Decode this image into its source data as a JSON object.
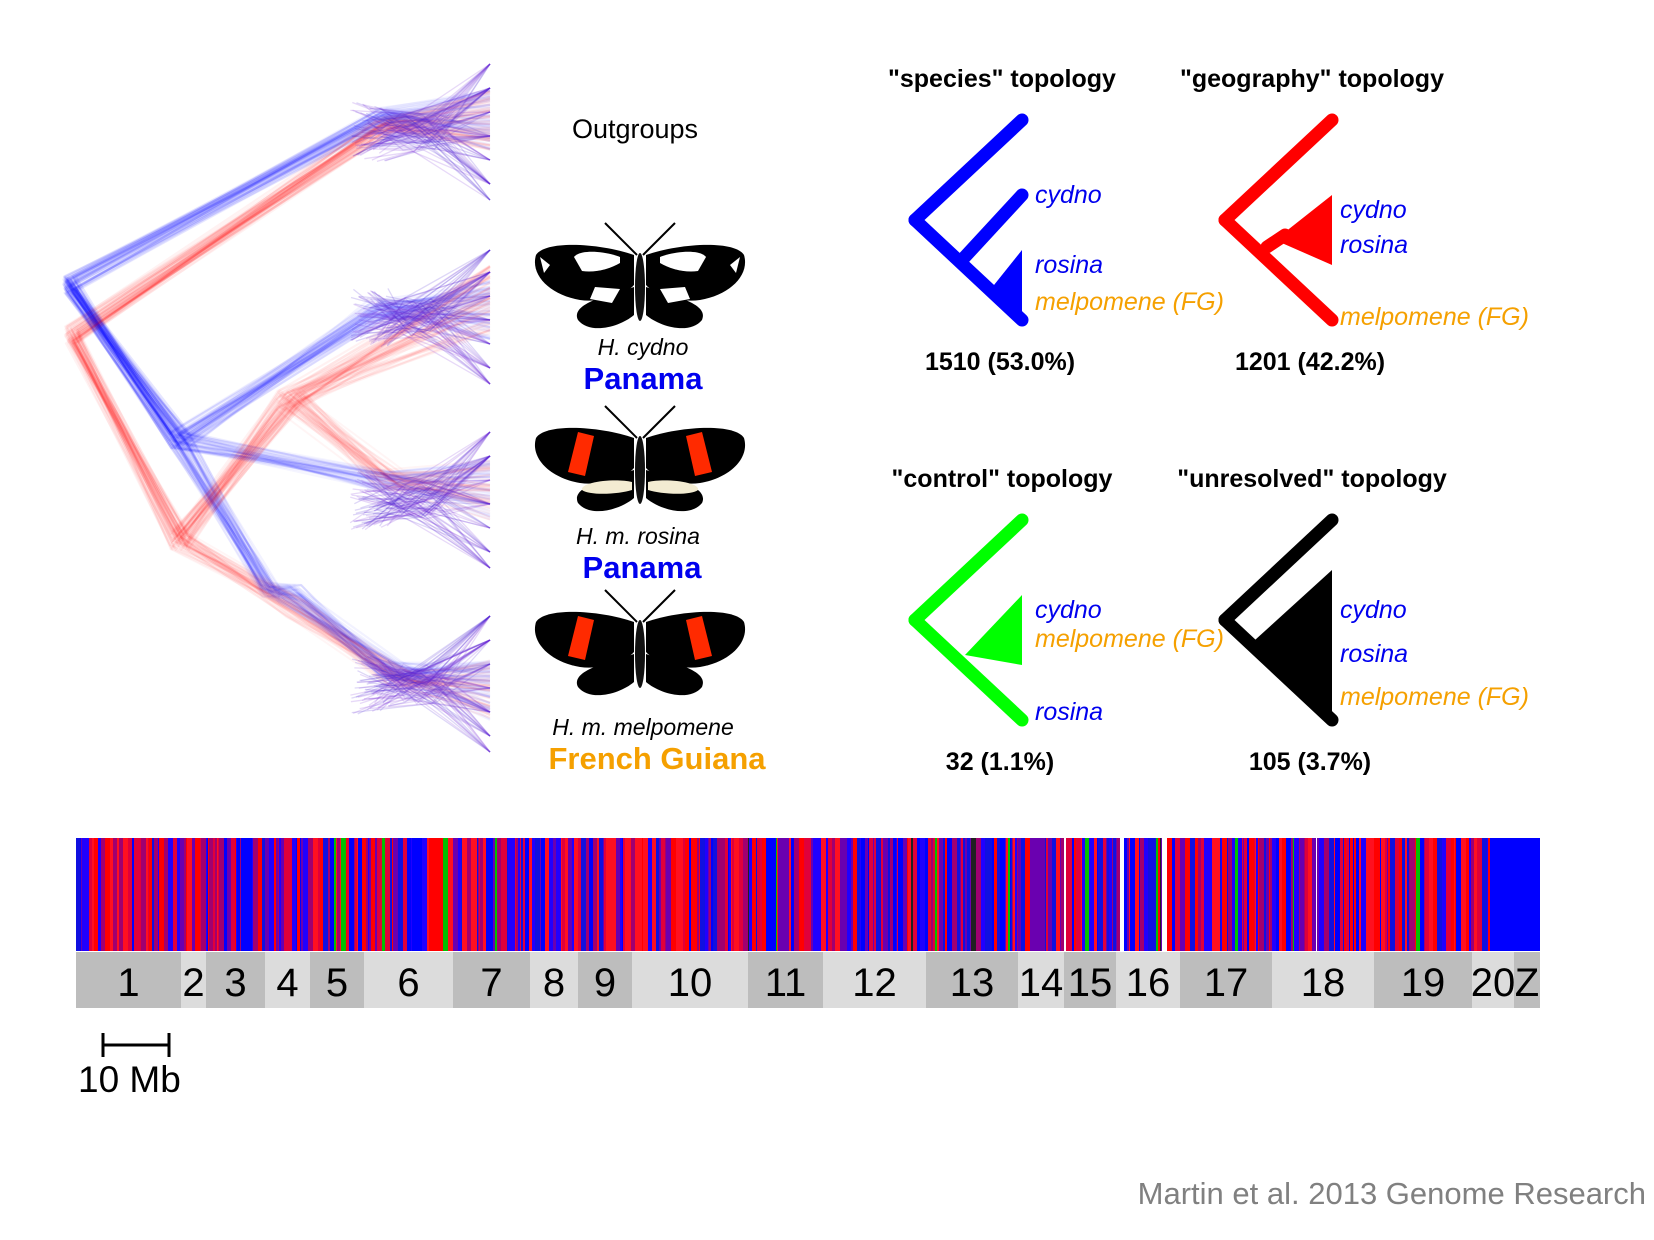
{
  "taxa": {
    "outgroups": "Outgroups",
    "cydno_name": "H. cydno",
    "cydno_loc": "Panama",
    "rosina_name": "H. m. rosina",
    "rosina_loc": "Panama",
    "melp_name": "H. m. melpomene",
    "melp_loc": "French Guiana"
  },
  "topologies": [
    {
      "title": "\"species\" topology",
      "count": "1510 (53.0%)",
      "color": "#0000ff",
      "tips": [
        {
          "text": "cydno",
          "color": "#0000ee"
        },
        {
          "text": "rosina",
          "color": "#0000ee"
        },
        {
          "text": "melpomene (FG)",
          "color": "#f5a000"
        }
      ]
    },
    {
      "title": "\"geography\" topology",
      "count": "1201 (42.2%)",
      "color": "#ff0000",
      "tips": [
        {
          "text": "cydno",
          "color": "#0000ee"
        },
        {
          "text": "rosina",
          "color": "#0000ee"
        },
        {
          "text": "melpomene (FG)",
          "color": "#f5a000"
        }
      ]
    },
    {
      "title": "\"control\"  topology",
      "count": "32 (1.1%)",
      "color": "#00ff00",
      "tips": [
        {
          "text": "cydno",
          "color": "#0000ee"
        },
        {
          "text": "melpomene (FG)",
          "color": "#f5a000"
        },
        {
          "text": "rosina",
          "color": "#0000ee"
        }
      ]
    },
    {
      "title": "\"unresolved\" topology",
      "count": "105 (3.7%)",
      "color": "#000000",
      "tips": [
        {
          "text": "cydno",
          "color": "#0000ee"
        },
        {
          "text": "rosina",
          "color": "#0000ee"
        },
        {
          "text": "melpomene (FG)",
          "color": "#f5a000"
        }
      ]
    }
  ],
  "chromosomes": [
    "1",
    "2",
    "3",
    "4",
    "5",
    "6",
    "7",
    "8",
    "9",
    "10",
    "11",
    "12",
    "13",
    "14",
    "15",
    "16",
    "17",
    "18",
    "19",
    "20",
    "Z"
  ],
  "scale_bar": "10 Mb",
  "citation": "Martin et al. 2013 Genome Research",
  "colors": {
    "species": "#0000ff",
    "geography": "#ff0000",
    "control": "#00ff00",
    "unresolved": "#000000",
    "blue_label": "#0000ee",
    "orange_label": "#f5a000",
    "chrom_dark": "#bdbdbd",
    "chrom_light": "#dcdcdc"
  }
}
